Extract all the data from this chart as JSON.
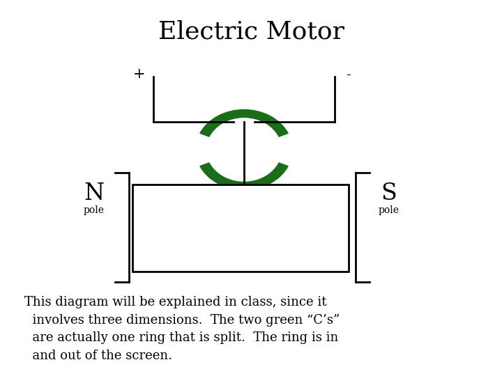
{
  "title": "Electric Motor",
  "title_fontsize": 26,
  "background_color": "#ffffff",
  "text_color": "#000000",
  "green_color": "#1a6e1a",
  "description": "This diagram will be explained in class, since it\n  involves three dimensions.  The two green “C’s”\n  are actually one ring that is split.  The ring is in\n  and out of the screen.",
  "desc_fontsize": 13.0,
  "N_label": "N",
  "S_label": "S",
  "pole_label": "pole",
  "plus_label": "+",
  "minus_label": "-",
  "lw": 2.0
}
